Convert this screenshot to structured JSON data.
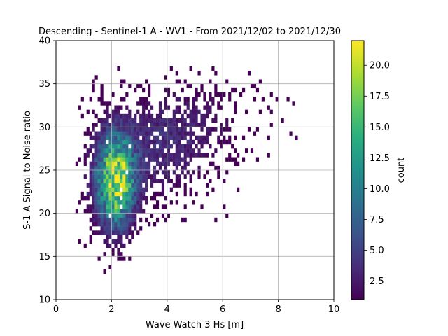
{
  "chart_data": {
    "type": "heatmap",
    "title": "Descending - Sentinel-1 A - WV1 - From 2021/12/02 to 2021/12/30",
    "xlabel": "Wave Watch 3 Hs [m]",
    "ylabel": "S-1 A Signal to Noise ratio",
    "xlim": [
      0,
      10
    ],
    "ylim": [
      10,
      40
    ],
    "xticks": [
      "0",
      "2",
      "4",
      "6",
      "8",
      "10"
    ],
    "yticks": [
      "10",
      "15",
      "20",
      "25",
      "30",
      "35",
      "40"
    ],
    "grid": true,
    "colormap": "viridis",
    "colorbar": {
      "label": "count",
      "range": [
        1,
        22
      ],
      "ticks": [
        "2.5",
        "5.0",
        "7.5",
        "10.0",
        "12.5",
        "15.0",
        "17.5",
        "20.0"
      ]
    },
    "bins": {
      "x_width": 0.1,
      "y_width": 0.5
    },
    "density_model": {
      "peak_count": 22,
      "core": {
        "hs_center": 2.1,
        "snr_center": 23.5,
        "hs_sd": 0.45,
        "snr_sd": 3.5,
        "weight": 1.0
      },
      "tail": {
        "hs_center": 3.8,
        "snr_center": 28.0,
        "hs_sd": 1.6,
        "snr_sd": 4.0,
        "weight": 0.18
      }
    }
  }
}
